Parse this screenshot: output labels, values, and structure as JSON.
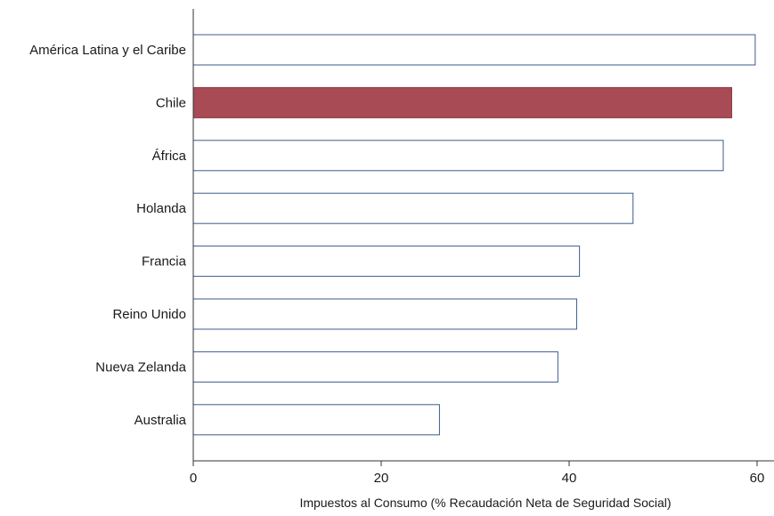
{
  "chart_data": {
    "type": "bar",
    "orientation": "horizontal",
    "categories": [
      "América Latina y el Caribe",
      "Chile",
      "África",
      "Holanda",
      "Francia",
      "Reino Unido",
      "Nueva Zelanda",
      "Australia"
    ],
    "values": [
      59.8,
      57.3,
      56.4,
      46.8,
      41.1,
      40.8,
      38.8,
      26.2
    ],
    "highlight": "Chile",
    "title": "",
    "xlabel": "Impuestos al Consumo (% Recaudación Neta de Seguridad Social)",
    "ylabel": "",
    "xlim": [
      0,
      60
    ],
    "xticks": [
      0,
      20,
      40,
      60
    ],
    "grid": false,
    "legend": "none",
    "colors": {
      "bar_fill": "#ffffff",
      "bar_stroke": "#3b5b8f",
      "highlight_fill": "#a84b55",
      "highlight_stroke": "#8a3a44",
      "axis": "#333333"
    }
  }
}
